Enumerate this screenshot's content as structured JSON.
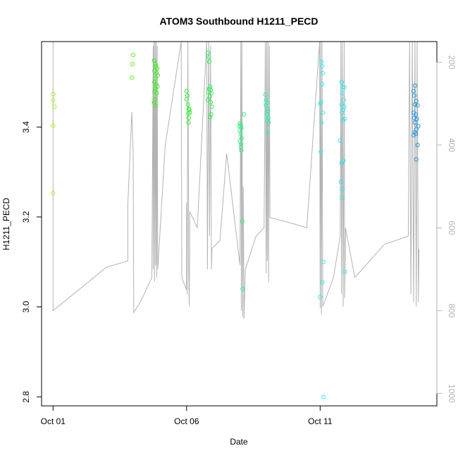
{
  "chart_data": {
    "type": "scatter",
    "title": "ATOM3 Southbound H1211_PECD",
    "xlabel": "Date",
    "ylabel": "H1211_PECD",
    "x_ticks": [
      "Oct 01",
      "Oct 06",
      "Oct 11"
    ],
    "y_ticks": [
      "2.8",
      "3.0",
      "3.2",
      "3.4"
    ],
    "y2_ticks": [
      "200",
      "400",
      "600",
      "800",
      "1000"
    ],
    "xlim": [
      "2016-10-01",
      "2016-10-15"
    ],
    "ylim": [
      2.78,
      3.59
    ],
    "y2lim": [
      1030,
      150
    ],
    "y2_reversed": true,
    "grid": false,
    "colors": {
      "axis": "#000000",
      "altitude_line": "#b3b3b3",
      "right_axis": "#b3b3b3"
    },
    "points": [
      {
        "x": 1.0,
        "y": 3.473,
        "color": "#a8f032"
      },
      {
        "x": 1.0,
        "y": 3.46,
        "color": "#a8f032"
      },
      {
        "x": 1.05,
        "y": 3.445,
        "color": "#a8f032"
      },
      {
        "x": 1.0,
        "y": 3.403,
        "color": "#a8f032"
      },
      {
        "x": 1.0,
        "y": 3.253,
        "color": "#a8f032"
      },
      {
        "x": 4.0,
        "y": 3.56,
        "color": "#5ff02a"
      },
      {
        "x": 3.97,
        "y": 3.54,
        "color": "#5ff02a"
      },
      {
        "x": 3.95,
        "y": 3.51,
        "color": "#5ff02a"
      },
      {
        "x": 4.78,
        "y": 3.548,
        "color": "#3ef01e"
      },
      {
        "x": 4.82,
        "y": 3.54,
        "color": "#3ef01e"
      },
      {
        "x": 4.85,
        "y": 3.535,
        "color": "#3ef01e"
      },
      {
        "x": 4.9,
        "y": 3.53,
        "color": "#3ef01e"
      },
      {
        "x": 4.8,
        "y": 3.525,
        "color": "#3ef01e"
      },
      {
        "x": 4.88,
        "y": 3.52,
        "color": "#3ef01e"
      },
      {
        "x": 4.92,
        "y": 3.515,
        "color": "#3ef01e"
      },
      {
        "x": 4.83,
        "y": 3.508,
        "color": "#3ef01e"
      },
      {
        "x": 4.79,
        "y": 3.5,
        "color": "#3ef01e"
      },
      {
        "x": 4.86,
        "y": 3.495,
        "color": "#3ef01e"
      },
      {
        "x": 4.91,
        "y": 3.49,
        "color": "#3ef01e"
      },
      {
        "x": 4.84,
        "y": 3.485,
        "color": "#3ef01e"
      },
      {
        "x": 4.8,
        "y": 3.48,
        "color": "#3ef01e"
      },
      {
        "x": 4.88,
        "y": 3.475,
        "color": "#3ef01e"
      },
      {
        "x": 4.82,
        "y": 3.462,
        "color": "#3ef01e"
      },
      {
        "x": 4.78,
        "y": 3.455,
        "color": "#3ef01e"
      },
      {
        "x": 4.85,
        "y": 3.447,
        "color": "#3ef01e"
      },
      {
        "x": 6.0,
        "y": 3.48,
        "color": "#33ee33"
      },
      {
        "x": 6.03,
        "y": 3.47,
        "color": "#33ee33"
      },
      {
        "x": 6.0,
        "y": 3.462,
        "color": "#33ee33"
      },
      {
        "x": 6.05,
        "y": 3.45,
        "color": "#33ee33"
      },
      {
        "x": 6.08,
        "y": 3.44,
        "color": "#33ee33"
      },
      {
        "x": 6.1,
        "y": 3.438,
        "color": "#33ee33"
      },
      {
        "x": 6.06,
        "y": 3.43,
        "color": "#33ee33"
      },
      {
        "x": 6.12,
        "y": 3.432,
        "color": "#33ee33"
      },
      {
        "x": 6.08,
        "y": 3.42,
        "color": "#33ee33"
      },
      {
        "x": 6.07,
        "y": 3.41,
        "color": "#33ee33"
      },
      {
        "x": 6.8,
        "y": 3.565,
        "color": "#33ee5a"
      },
      {
        "x": 6.83,
        "y": 3.555,
        "color": "#33ee5a"
      },
      {
        "x": 6.85,
        "y": 3.545,
        "color": "#33ee5a"
      },
      {
        "x": 6.88,
        "y": 3.49,
        "color": "#33ee5a"
      },
      {
        "x": 6.85,
        "y": 3.485,
        "color": "#33ee5a"
      },
      {
        "x": 6.9,
        "y": 3.482,
        "color": "#33ee5a"
      },
      {
        "x": 6.82,
        "y": 3.478,
        "color": "#33ee5a"
      },
      {
        "x": 6.93,
        "y": 3.475,
        "color": "#33ee5a"
      },
      {
        "x": 6.87,
        "y": 3.468,
        "color": "#33ee5a"
      },
      {
        "x": 6.8,
        "y": 3.46,
        "color": "#33ee5a"
      },
      {
        "x": 6.9,
        "y": 3.455,
        "color": "#33ee5a"
      },
      {
        "x": 6.95,
        "y": 3.445,
        "color": "#33ee5a"
      },
      {
        "x": 6.92,
        "y": 3.428,
        "color": "#33ee5a"
      },
      {
        "x": 6.88,
        "y": 3.422,
        "color": "#33ee5a"
      },
      {
        "x": 8.0,
        "y": 3.408,
        "color": "#33ee85"
      },
      {
        "x": 8.03,
        "y": 3.405,
        "color": "#33ee85"
      },
      {
        "x": 7.98,
        "y": 3.402,
        "color": "#33ee85"
      },
      {
        "x": 8.05,
        "y": 3.398,
        "color": "#33ee85"
      },
      {
        "x": 8.0,
        "y": 3.392,
        "color": "#33ee85"
      },
      {
        "x": 8.02,
        "y": 3.385,
        "color": "#33ee85"
      },
      {
        "x": 8.06,
        "y": 3.375,
        "color": "#33ee85"
      },
      {
        "x": 8.0,
        "y": 3.368,
        "color": "#33ee85"
      },
      {
        "x": 8.04,
        "y": 3.362,
        "color": "#33ee85"
      },
      {
        "x": 8.03,
        "y": 3.355,
        "color": "#33ee85"
      },
      {
        "x": 8.05,
        "y": 3.348,
        "color": "#33ee85"
      },
      {
        "x": 8.15,
        "y": 3.428,
        "color": "#33ee85"
      },
      {
        "x": 8.08,
        "y": 3.19,
        "color": "#33ee85"
      },
      {
        "x": 8.1,
        "y": 3.04,
        "color": "#33ee85"
      },
      {
        "x": 8.95,
        "y": 3.472,
        "color": "#33eea8"
      },
      {
        "x": 8.98,
        "y": 3.46,
        "color": "#33eea8"
      },
      {
        "x": 9.0,
        "y": 3.455,
        "color": "#33eea8"
      },
      {
        "x": 8.97,
        "y": 3.448,
        "color": "#33eea8"
      },
      {
        "x": 9.03,
        "y": 3.44,
        "color": "#33eea8"
      },
      {
        "x": 9.05,
        "y": 3.435,
        "color": "#33eea8"
      },
      {
        "x": 9.0,
        "y": 3.428,
        "color": "#33eea8"
      },
      {
        "x": 9.06,
        "y": 3.42,
        "color": "#33eea8"
      },
      {
        "x": 9.02,
        "y": 3.415,
        "color": "#33eea8"
      },
      {
        "x": 9.07,
        "y": 3.41,
        "color": "#33eea8"
      },
      {
        "x": 9.04,
        "y": 3.388,
        "color": "#33eea8"
      },
      {
        "x": 11.05,
        "y": 3.545,
        "color": "#33eee8"
      },
      {
        "x": 11.07,
        "y": 3.535,
        "color": "#33eee8"
      },
      {
        "x": 11.1,
        "y": 3.52,
        "color": "#33eee8"
      },
      {
        "x": 11.07,
        "y": 3.495,
        "color": "#33eee8"
      },
      {
        "x": 11.03,
        "y": 3.455,
        "color": "#33eee8"
      },
      {
        "x": 11.0,
        "y": 3.452,
        "color": "#33eee8"
      },
      {
        "x": 11.1,
        "y": 3.432,
        "color": "#33eee8"
      },
      {
        "x": 11.05,
        "y": 3.41,
        "color": "#33eee8"
      },
      {
        "x": 11.03,
        "y": 3.345,
        "color": "#33eee8"
      },
      {
        "x": 11.12,
        "y": 3.1,
        "color": "#33eee8"
      },
      {
        "x": 11.08,
        "y": 3.055,
        "color": "#33eee8"
      },
      {
        "x": 11.0,
        "y": 3.022,
        "color": "#33eee8"
      },
      {
        "x": 11.13,
        "y": 2.8,
        "color": "#33eee8"
      },
      {
        "x": 11.8,
        "y": 3.5,
        "color": "#33e5ee"
      },
      {
        "x": 11.85,
        "y": 3.49,
        "color": "#33e5ee"
      },
      {
        "x": 11.9,
        "y": 3.488,
        "color": "#33e5ee"
      },
      {
        "x": 11.83,
        "y": 3.475,
        "color": "#33e5ee"
      },
      {
        "x": 11.88,
        "y": 3.46,
        "color": "#33e5ee"
      },
      {
        "x": 11.8,
        "y": 3.45,
        "color": "#33e5ee"
      },
      {
        "x": 11.9,
        "y": 3.445,
        "color": "#33e5ee"
      },
      {
        "x": 11.85,
        "y": 3.438,
        "color": "#33e5ee"
      },
      {
        "x": 11.82,
        "y": 3.432,
        "color": "#33e5ee"
      },
      {
        "x": 11.92,
        "y": 3.418,
        "color": "#33e5ee"
      },
      {
        "x": 11.86,
        "y": 3.415,
        "color": "#33e5ee"
      },
      {
        "x": 11.75,
        "y": 3.37,
        "color": "#33e5ee"
      },
      {
        "x": 11.87,
        "y": 3.325,
        "color": "#33e5ee"
      },
      {
        "x": 11.8,
        "y": 3.32,
        "color": "#33e5ee"
      },
      {
        "x": 11.78,
        "y": 3.278,
        "color": "#33e5ee"
      },
      {
        "x": 11.83,
        "y": 3.262,
        "color": "#33e5ee"
      },
      {
        "x": 11.82,
        "y": 3.242,
        "color": "#33e5ee"
      },
      {
        "x": 11.92,
        "y": 3.078,
        "color": "#33e5ee"
      },
      {
        "x": 14.55,
        "y": 3.492,
        "color": "#2299e0"
      },
      {
        "x": 14.5,
        "y": 3.48,
        "color": "#2299e0"
      },
      {
        "x": 14.52,
        "y": 3.47,
        "color": "#2299e0"
      },
      {
        "x": 14.6,
        "y": 3.458,
        "color": "#2299e0"
      },
      {
        "x": 14.55,
        "y": 3.45,
        "color": "#2299e0"
      },
      {
        "x": 14.65,
        "y": 3.448,
        "color": "#2299e0"
      },
      {
        "x": 14.5,
        "y": 3.432,
        "color": "#2299e0"
      },
      {
        "x": 14.58,
        "y": 3.428,
        "color": "#2299e0"
      },
      {
        "x": 14.52,
        "y": 3.42,
        "color": "#2299e0"
      },
      {
        "x": 14.62,
        "y": 3.418,
        "color": "#2299e0"
      },
      {
        "x": 14.55,
        "y": 3.41,
        "color": "#2299e0"
      },
      {
        "x": 14.67,
        "y": 3.402,
        "color": "#2299e0"
      },
      {
        "x": 14.6,
        "y": 3.395,
        "color": "#2299e0"
      },
      {
        "x": 14.55,
        "y": 3.388,
        "color": "#2299e0"
      },
      {
        "x": 14.5,
        "y": 3.382,
        "color": "#2299e0"
      },
      {
        "x": 14.58,
        "y": 3.385,
        "color": "#2299e0"
      },
      {
        "x": 14.65,
        "y": 3.36,
        "color": "#2299e0"
      },
      {
        "x": 14.6,
        "y": 3.328,
        "color": "#2299e0"
      }
    ],
    "altitude_series": [
      [
        1.0,
        140
      ],
      [
        1.0,
        800
      ],
      [
        3.0,
        695
      ],
      [
        3.8,
        680
      ],
      [
        3.8,
        545
      ],
      [
        3.95,
        320
      ],
      [
        4.0,
        420
      ],
      [
        4.02,
        805
      ],
      [
        4.3,
        775
      ],
      [
        4.7,
        720
      ],
      [
        4.75,
        160
      ],
      [
        4.75,
        700
      ],
      [
        4.78,
        140
      ],
      [
        4.8,
        730
      ],
      [
        4.82,
        150
      ],
      [
        4.84,
        690
      ],
      [
        4.86,
        140
      ],
      [
        4.88,
        720
      ],
      [
        4.9,
        160
      ],
      [
        4.92,
        700
      ],
      [
        5.2,
        400
      ],
      [
        5.8,
        140
      ],
      [
        5.82,
        720
      ],
      [
        6.0,
        750
      ],
      [
        6.0,
        540
      ],
      [
        6.02,
        760
      ],
      [
        6.05,
        140
      ],
      [
        6.08,
        720
      ],
      [
        6.1,
        790
      ],
      [
        6.12,
        560
      ],
      [
        6.4,
        600
      ],
      [
        6.75,
        140
      ],
      [
        6.78,
        700
      ],
      [
        6.8,
        420
      ],
      [
        6.83,
        140
      ],
      [
        6.86,
        620
      ],
      [
        6.9,
        160
      ],
      [
        6.93,
        700
      ],
      [
        6.95,
        650
      ],
      [
        7.25,
        630
      ],
      [
        7.5,
        420
      ],
      [
        8.0,
        690
      ],
      [
        8.03,
        140
      ],
      [
        8.05,
        800
      ],
      [
        8.07,
        140
      ],
      [
        8.1,
        815
      ],
      [
        8.12,
        500
      ],
      [
        8.15,
        820
      ],
      [
        8.2,
        700
      ],
      [
        8.6,
        620
      ],
      [
        8.9,
        600
      ],
      [
        8.95,
        140
      ],
      [
        8.98,
        710
      ],
      [
        9.0,
        140
      ],
      [
        9.02,
        680
      ],
      [
        9.05,
        140
      ],
      [
        9.07,
        730
      ],
      [
        9.1,
        160
      ],
      [
        9.12,
        575
      ],
      [
        10.0,
        590
      ],
      [
        10.5,
        600
      ],
      [
        10.98,
        140
      ],
      [
        11.0,
        795
      ],
      [
        11.02,
        140
      ],
      [
        11.05,
        810
      ],
      [
        11.07,
        140
      ],
      [
        11.1,
        790
      ],
      [
        11.5,
        720
      ],
      [
        11.75,
        620
      ],
      [
        11.78,
        140
      ],
      [
        11.8,
        760
      ],
      [
        11.83,
        140
      ],
      [
        11.86,
        790
      ],
      [
        11.9,
        140
      ],
      [
        11.92,
        770
      ],
      [
        11.95,
        600
      ],
      [
        12.3,
        720
      ],
      [
        13.4,
        640
      ],
      [
        14.3,
        620
      ],
      [
        14.35,
        140
      ],
      [
        14.4,
        760
      ],
      [
        14.45,
        140
      ],
      [
        14.5,
        780
      ],
      [
        14.55,
        140
      ],
      [
        14.6,
        790
      ],
      [
        14.63,
        140
      ],
      [
        14.68,
        780
      ],
      [
        14.7,
        650
      ]
    ]
  }
}
